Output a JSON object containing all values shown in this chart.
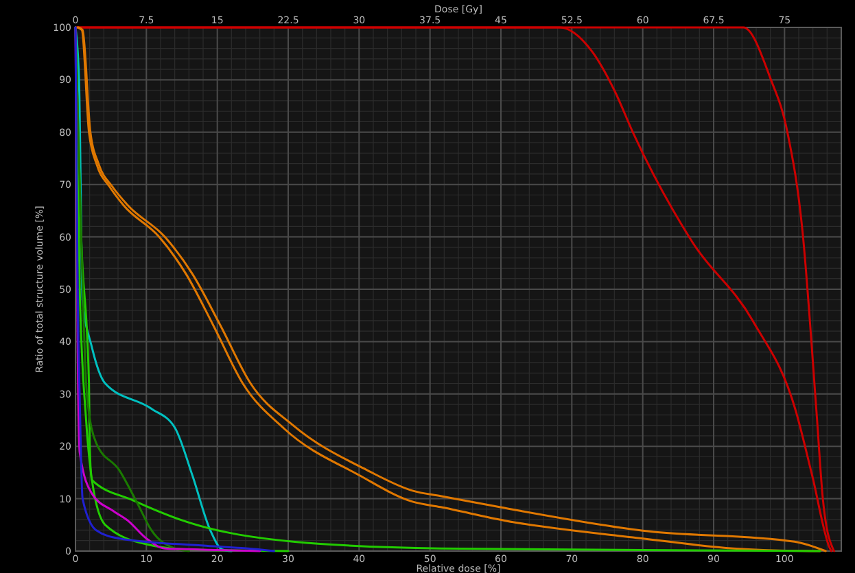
{
  "chart_data": {
    "type": "line",
    "xlabel": "Relative dose [%]",
    "ylabel": "Ratio of total structure volume [%]",
    "x2label": "Dose [Gy]",
    "xlim": [
      0,
      108
    ],
    "xticks": [
      0,
      10,
      20,
      30,
      40,
      50,
      60,
      70,
      80,
      90,
      100
    ],
    "x2lim": [
      0,
      81
    ],
    "x2ticks": [
      0,
      7.5,
      15,
      22.5,
      30,
      37.5,
      45,
      52.5,
      60,
      67.5,
      75
    ],
    "ylim": [
      0,
      100
    ],
    "yticks": [
      0,
      10,
      20,
      30,
      40,
      50,
      60,
      70,
      80,
      90,
      100
    ],
    "grid": true,
    "marker": "none",
    "line_style": "solid",
    "series": [
      {
        "color": "#cc0000",
        "x": [
          0,
          30,
          68.3,
          72.8,
          76.1,
          78.6,
          87,
          95.5,
          101.6,
          103.9,
          106.4,
          106.6
        ],
        "values": [
          100,
          100,
          100,
          95.5,
          87.7,
          80,
          59,
          44,
          26.7,
          14.4,
          0.5,
          0
        ]
      },
      {
        "color": "#cc0000",
        "x": [
          0,
          60,
          94.2,
          98,
          100.4,
          102.5,
          104.5,
          105.4,
          106.8,
          107
        ],
        "values": [
          100,
          100,
          100,
          90.3,
          80,
          61.5,
          26.7,
          10,
          0.5,
          0
        ]
      },
      {
        "color": "#e07800",
        "x": [
          0.4,
          1,
          2.1,
          3.3,
          5.2,
          7.4,
          12.6,
          16.5,
          20.4,
          24.7,
          30.7,
          41.2,
          47.6,
          51.5,
          59.8,
          80,
          101.4,
          105.8
        ],
        "values": [
          100,
          99.5,
          80,
          73.8,
          69.6,
          66,
          60,
          52.9,
          43.2,
          32,
          24,
          15.4,
          11.5,
          10.5,
          8.4,
          3.9,
          1.8,
          0
        ]
      },
      {
        "color": "#e07800",
        "x": [
          0.3,
          0.9,
          1.9,
          3,
          4.8,
          6.8,
          11.8,
          15.6,
          19.4,
          23.6,
          29.5,
          40,
          47.6,
          51.5,
          60.6,
          80,
          92.8,
          97,
          105
        ],
        "values": [
          100,
          99.5,
          80,
          73.8,
          69.6,
          66,
          60,
          52.9,
          43.2,
          32,
          23.3,
          14.5,
          9.4,
          8.4,
          5.8,
          2.4,
          0.5,
          0.2,
          0
        ]
      },
      {
        "color": "#00c0c0",
        "x": [
          0,
          0.5,
          1,
          2.3,
          4.2,
          10.7,
          14,
          16.5,
          19,
          20.7,
          22
        ],
        "values": [
          100,
          90,
          48,
          39,
          32,
          27.2,
          23.6,
          14.4,
          4,
          0.3,
          0
        ]
      },
      {
        "color": "#22cc00",
        "x": [
          0,
          0.8,
          1.9,
          2,
          2.3,
          8.1,
          15.2,
          30.7,
          51.5,
          80,
          105
        ],
        "values": [
          100,
          60,
          32,
          20.7,
          13.6,
          9.7,
          5.8,
          1.8,
          0.5,
          0.2,
          0
        ]
      },
      {
        "color": "#22cc00",
        "x": [
          0,
          0.6,
          1.5,
          2.5,
          4.2,
          10,
          16,
          30
        ],
        "values": [
          100,
          50,
          25,
          12,
          5,
          1.3,
          0.3,
          0
        ]
      },
      {
        "color": "#1a7a00",
        "x": [
          0,
          0.8,
          1.6,
          2.9,
          6.2,
          8.7,
          10.7,
          14,
          16
        ],
        "values": [
          100,
          60,
          30,
          20.7,
          15.4,
          9.2,
          4,
          0.5,
          0
        ]
      },
      {
        "color": "#cc00cc",
        "x": [
          0,
          0.3,
          0.6,
          2.3,
          5.4,
          7.4,
          10,
          12.6,
          20,
          26
        ],
        "values": [
          100,
          40,
          18.8,
          11,
          7.6,
          5.8,
          2.4,
          0.5,
          0.2,
          0
        ]
      },
      {
        "color": "#2020d0",
        "x": [
          0,
          0.3,
          0.6,
          1,
          2.9,
          6.2,
          18.4,
          26,
          28
        ],
        "values": [
          100,
          50,
          29,
          10,
          4,
          2.4,
          1,
          0.3,
          0
        ]
      }
    ]
  }
}
